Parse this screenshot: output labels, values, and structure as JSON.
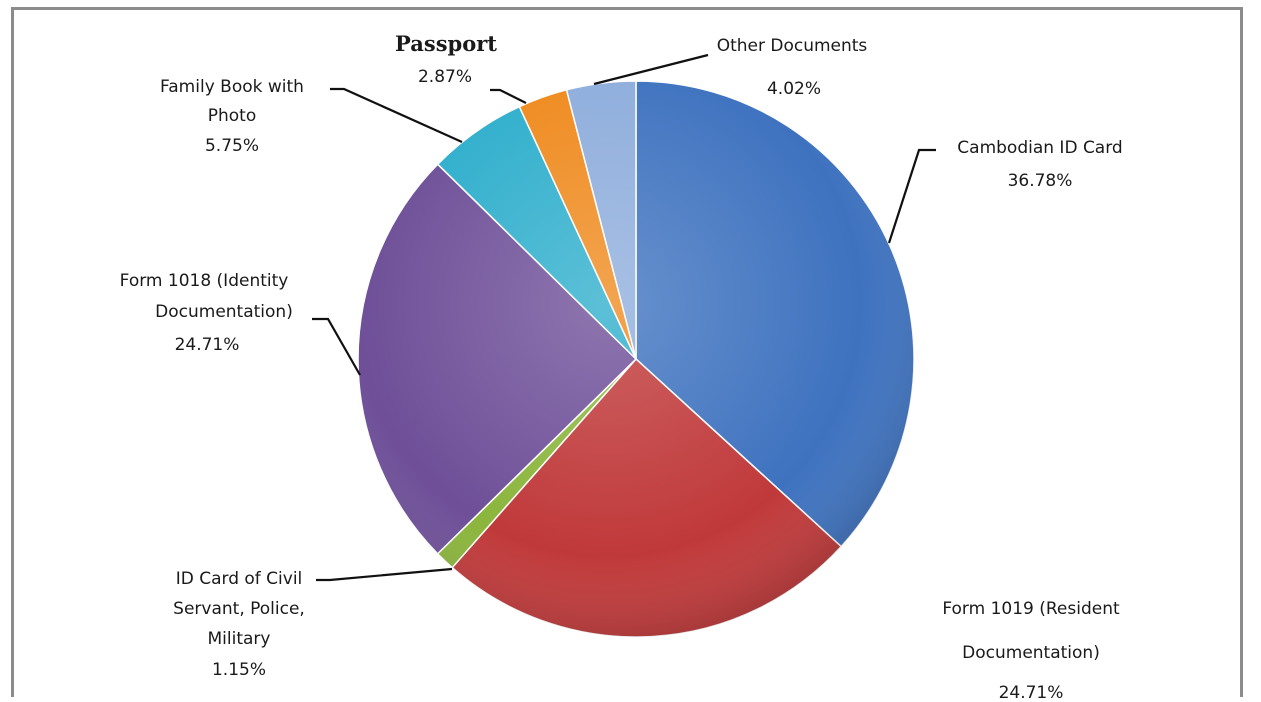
{
  "chart_data": {
    "type": "pie",
    "title": "",
    "start_angle_deg": 0,
    "direction": "clockwise",
    "slices": [
      {
        "label": "Cambodian ID Card",
        "value": 36.78,
        "value_label": "36.78%",
        "color": "#3e72bf"
      },
      {
        "label": "Form 1019 (Resident Documentation)",
        "value": 24.71,
        "value_label": "24.71%",
        "color": "#c0393a"
      },
      {
        "label": "ID Card of Civil Servant, Police, Military",
        "value": 1.15,
        "value_label": "1.15%",
        "color": "#8bb53c"
      },
      {
        "label": "Form 1018 (Identity Documentation)",
        "value": 24.71,
        "value_label": "24.71%",
        "color": "#6e4f98"
      },
      {
        "label": "Family Book with Photo",
        "value": 5.75,
        "value_label": "5.75%",
        "color": "#2eaecc"
      },
      {
        "label": "Passport",
        "value": 2.87,
        "value_label": "2.87%",
        "color": "#ef8a1e"
      },
      {
        "label": "Other Documents",
        "value": 4.02,
        "value_label": "4.02%",
        "color": "#8eaddc"
      }
    ],
    "legend": "none",
    "labels": {
      "cambodian_line1": "Cambodian ID Card",
      "cambodian_pct": "36.78%",
      "form1019_line1": "Form 1019 (Resident",
      "form1019_line2": "Documentation)",
      "form1019_pct": "24.71%",
      "civil_line1": "ID Card of Civil",
      "civil_line2": "Servant, Police,",
      "civil_line3": "Military",
      "civil_pct": "1.15%",
      "form1018_line1": "Form 1018 (Identity",
      "form1018_line2": "Documentation)",
      "form1018_pct": "24.71%",
      "family_line1": "Family Book with",
      "family_line2": "Photo",
      "family_pct": "5.75%",
      "passport_line1": "Passport",
      "passport_pct": "2.87%",
      "other_line1": "Other  Documents",
      "other_pct": "4.02%"
    }
  }
}
